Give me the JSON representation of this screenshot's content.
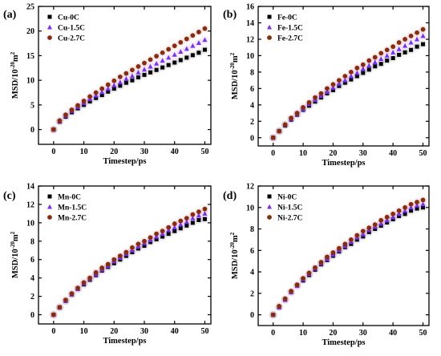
{
  "chart_data": [
    {
      "type": "scatter",
      "panel_label": "(a)",
      "xlabel": "Timestep/ps",
      "ylabel": "MSD/10⁻²⁰m²",
      "xlim": [
        -5,
        52
      ],
      "ylim": [
        -3,
        25
      ],
      "xticks": [
        0,
        10,
        20,
        30,
        40,
        50
      ],
      "yticks": [
        0,
        5,
        10,
        15,
        20,
        25
      ],
      "legend_position": "top-left",
      "x": [
        0,
        2,
        4,
        6,
        8,
        10,
        12,
        14,
        16,
        18,
        20,
        22,
        24,
        26,
        28,
        30,
        32,
        34,
        36,
        38,
        40,
        42,
        44,
        46,
        48,
        50
      ],
      "series": [
        {
          "name": "Cu-0C",
          "marker": "square",
          "color": "#000000",
          "values": [
            0,
            1.6,
            2.6,
            3.5,
            4.3,
            5.0,
            5.7,
            6.4,
            7.0,
            7.7,
            8.3,
            8.9,
            9.5,
            10.0,
            10.6,
            11.1,
            11.6,
            12.1,
            12.6,
            13.1,
            13.6,
            14.1,
            14.6,
            15.1,
            15.6,
            16.2
          ]
        },
        {
          "name": "Cu-1.5C",
          "marker": "triangle",
          "color": "#7b2fff",
          "values": [
            0,
            1.7,
            2.8,
            3.8,
            4.6,
            5.4,
            6.2,
            6.9,
            7.6,
            8.3,
            9.0,
            9.6,
            10.3,
            10.9,
            11.6,
            12.2,
            12.8,
            13.4,
            14.0,
            14.6,
            15.2,
            15.8,
            16.4,
            17.0,
            17.6,
            18.2
          ]
        },
        {
          "name": "Cu-2.7C",
          "marker": "circle",
          "color": "#8b2a0d",
          "values": [
            0,
            1.8,
            3.0,
            4.0,
            4.9,
            5.8,
            6.7,
            7.5,
            8.3,
            9.1,
            9.9,
            10.7,
            11.4,
            12.1,
            12.8,
            13.5,
            14.2,
            14.9,
            15.6,
            16.3,
            17.0,
            17.7,
            18.4,
            19.1,
            19.8,
            20.5
          ]
        }
      ]
    },
    {
      "type": "scatter",
      "panel_label": "(b)",
      "xlabel": "Timestep/ps",
      "ylabel": "MSD/10⁻²⁰m²",
      "xlim": [
        -5,
        52
      ],
      "ylim": [
        -1,
        16
      ],
      "xticks": [
        0,
        10,
        20,
        30,
        40,
        50
      ],
      "yticks": [
        0,
        2,
        4,
        6,
        8,
        10,
        12,
        14,
        16
      ],
      "legend_position": "top-left",
      "x": [
        0,
        2,
        4,
        6,
        8,
        10,
        12,
        14,
        16,
        18,
        20,
        22,
        24,
        26,
        28,
        30,
        32,
        34,
        36,
        38,
        40,
        42,
        44,
        46,
        48,
        50
      ],
      "series": [
        {
          "name": "Fe-0C",
          "marker": "square",
          "color": "#000000",
          "values": [
            0,
            0.8,
            1.5,
            2.2,
            2.8,
            3.4,
            3.9,
            4.4,
            4.9,
            5.4,
            5.8,
            6.3,
            6.7,
            7.1,
            7.5,
            7.9,
            8.3,
            8.7,
            9.0,
            9.4,
            9.7,
            10.1,
            10.4,
            10.7,
            11.1,
            11.4
          ]
        },
        {
          "name": "Fe-1.5C",
          "marker": "triangle",
          "color": "#7b2fff",
          "values": [
            0,
            0.8,
            1.6,
            2.3,
            2.9,
            3.5,
            4.1,
            4.6,
            5.1,
            5.6,
            6.1,
            6.6,
            7.0,
            7.5,
            7.9,
            8.4,
            8.8,
            9.2,
            9.6,
            10.0,
            10.4,
            10.8,
            11.2,
            11.6,
            12.0,
            12.4
          ]
        },
        {
          "name": "Fe-2.7C",
          "marker": "circle",
          "color": "#8b2a0d",
          "values": [
            0,
            0.8,
            1.6,
            2.4,
            3.0,
            3.7,
            4.3,
            4.9,
            5.4,
            6.0,
            6.5,
            7.0,
            7.5,
            8.0,
            8.5,
            8.9,
            9.4,
            9.8,
            10.3,
            10.7,
            11.1,
            11.6,
            12.0,
            12.4,
            12.8,
            13.2
          ]
        }
      ]
    },
    {
      "type": "scatter",
      "panel_label": "(c)",
      "xlabel": "Timestep/ps",
      "ylabel": "MSD/10⁻²⁰m²",
      "xlim": [
        -5,
        52
      ],
      "ylim": [
        -1,
        14
      ],
      "xticks": [
        0,
        10,
        20,
        30,
        40,
        50
      ],
      "yticks": [
        0,
        2,
        4,
        6,
        8,
        10,
        12,
        14
      ],
      "legend_position": "top-left",
      "x": [
        0,
        2,
        4,
        6,
        8,
        10,
        12,
        14,
        16,
        18,
        20,
        22,
        24,
        26,
        28,
        30,
        32,
        34,
        36,
        38,
        40,
        42,
        44,
        46,
        48,
        50
      ],
      "series": [
        {
          "name": "Mn-0C",
          "marker": "square",
          "color": "#000000",
          "values": [
            0,
            0.8,
            1.5,
            2.2,
            2.8,
            3.3,
            3.8,
            4.3,
            4.8,
            5.2,
            5.6,
            6.0,
            6.4,
            6.8,
            7.2,
            7.5,
            7.9,
            8.2,
            8.5,
            8.8,
            9.1,
            9.4,
            9.7,
            10.0,
            10.3,
            10.4
          ]
        },
        {
          "name": "Mn-1.5C",
          "marker": "triangle",
          "color": "#7b2fff",
          "values": [
            0,
            0.8,
            1.5,
            2.2,
            2.8,
            3.4,
            3.9,
            4.4,
            4.9,
            5.3,
            5.8,
            6.2,
            6.6,
            7.0,
            7.4,
            7.8,
            8.1,
            8.5,
            8.8,
            9.2,
            9.5,
            9.8,
            10.1,
            10.5,
            10.8,
            11.0
          ]
        },
        {
          "name": "Mn-2.7C",
          "marker": "circle",
          "color": "#8b2a0d",
          "values": [
            0,
            0.8,
            1.6,
            2.3,
            2.9,
            3.5,
            4.0,
            4.6,
            5.1,
            5.5,
            6.0,
            6.4,
            6.8,
            7.3,
            7.7,
            8.0,
            8.4,
            8.8,
            9.1,
            9.5,
            9.9,
            10.2,
            10.5,
            10.9,
            11.2,
            11.5
          ]
        }
      ]
    },
    {
      "type": "scatter",
      "panel_label": "(d)",
      "xlabel": "Timestep/ps",
      "ylabel": "MSD/10⁻²⁰m²",
      "xlim": [
        -5,
        52
      ],
      "ylim": [
        -1,
        12
      ],
      "xticks": [
        0,
        10,
        20,
        30,
        40,
        50
      ],
      "yticks": [
        0,
        2,
        4,
        6,
        8,
        10,
        12
      ],
      "legend_position": "top-left",
      "x": [
        0,
        2,
        4,
        6,
        8,
        10,
        12,
        14,
        16,
        18,
        20,
        22,
        24,
        26,
        28,
        30,
        32,
        34,
        36,
        38,
        40,
        42,
        44,
        46,
        48,
        50
      ],
      "series": [
        {
          "name": "Ni-0C",
          "marker": "square",
          "color": "#000000",
          "values": [
            0,
            0.7,
            1.4,
            2.1,
            2.7,
            3.2,
            3.7,
            4.2,
            4.7,
            5.1,
            5.5,
            5.9,
            6.3,
            6.6,
            7.0,
            7.3,
            7.7,
            8.0,
            8.3,
            8.6,
            8.9,
            9.2,
            9.4,
            9.7,
            9.9,
            10.0
          ]
        },
        {
          "name": "Ni-1.5C",
          "marker": "triangle",
          "color": "#7b2fff",
          "values": [
            0,
            0.7,
            1.4,
            2.1,
            2.7,
            3.3,
            3.8,
            4.3,
            4.8,
            5.2,
            5.6,
            6.0,
            6.4,
            6.8,
            7.2,
            7.5,
            7.9,
            8.2,
            8.5,
            8.8,
            9.1,
            9.4,
            9.7,
            10.0,
            10.2,
            10.3
          ]
        },
        {
          "name": "Ni-2.7C",
          "marker": "circle",
          "color": "#8b2a0d",
          "values": [
            0,
            0.8,
            1.5,
            2.2,
            2.8,
            3.4,
            3.9,
            4.4,
            4.9,
            5.4,
            5.8,
            6.2,
            6.6,
            7.0,
            7.4,
            7.8,
            8.1,
            8.4,
            8.8,
            9.1,
            9.4,
            9.7,
            10.0,
            10.3,
            10.5,
            10.7
          ]
        }
      ]
    }
  ]
}
